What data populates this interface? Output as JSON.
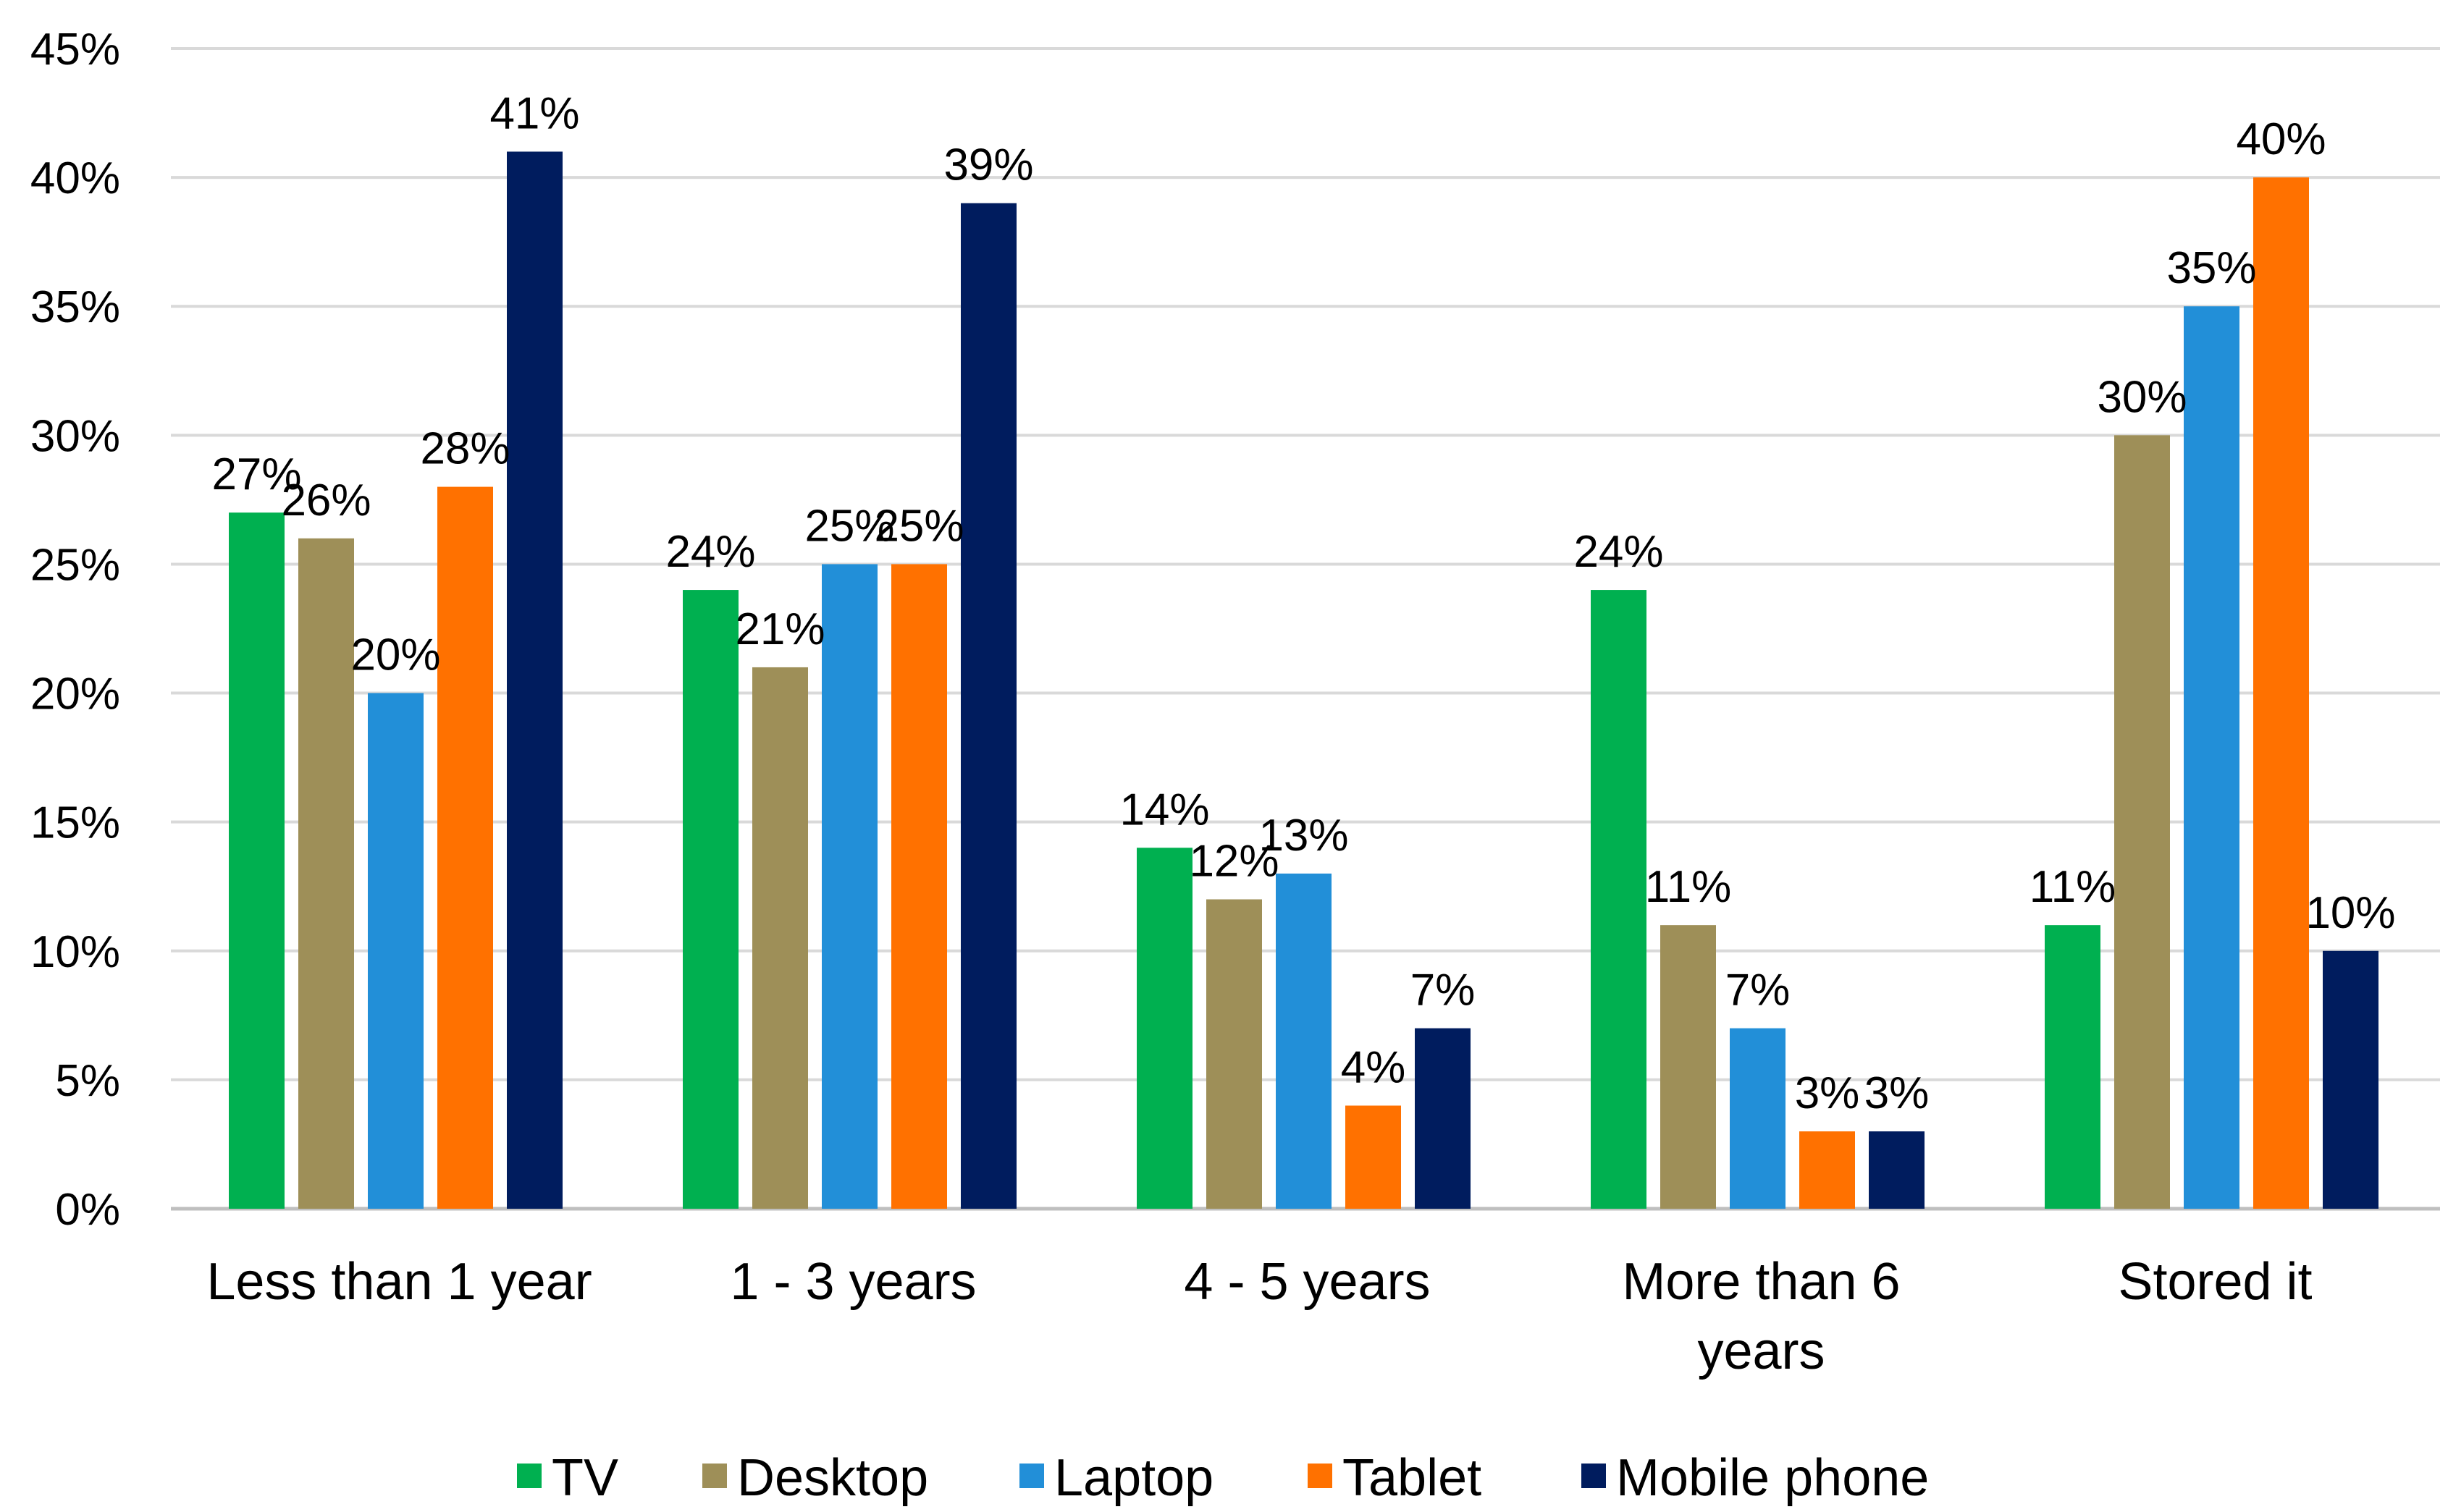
{
  "chart_data": {
    "type": "bar",
    "title": "",
    "xlabel": "",
    "ylabel": "",
    "ylim": [
      0,
      45
    ],
    "yticks": [
      "0%",
      "5%",
      "10%",
      "15%",
      "20%",
      "25%",
      "30%",
      "35%",
      "40%",
      "45%"
    ],
    "grid": true,
    "legend_position": "bottom",
    "categories": [
      [
        "Less than 1 year"
      ],
      [
        "1 - 3 years"
      ],
      [
        "4 - 5 years"
      ],
      [
        "More than 6",
        "years"
      ],
      [
        "Stored it"
      ]
    ],
    "series": [
      {
        "name": "TV",
        "color": "#00b050",
        "values": [
          27,
          24,
          14,
          24,
          11
        ]
      },
      {
        "name": "Desktop",
        "color": "#9e8f58",
        "values": [
          26,
          21,
          12,
          11,
          30
        ]
      },
      {
        "name": "Laptop",
        "color": "#228fd8",
        "values": [
          20,
          25,
          13,
          7,
          35
        ]
      },
      {
        "name": "Tablet",
        "color": "#ff7100",
        "values": [
          28,
          25,
          4,
          3,
          40
        ]
      },
      {
        "name": "Mobile phone",
        "color": "#001c5e",
        "values": [
          41,
          39,
          7,
          3,
          10
        ]
      }
    ],
    "value_suffix": "%"
  }
}
